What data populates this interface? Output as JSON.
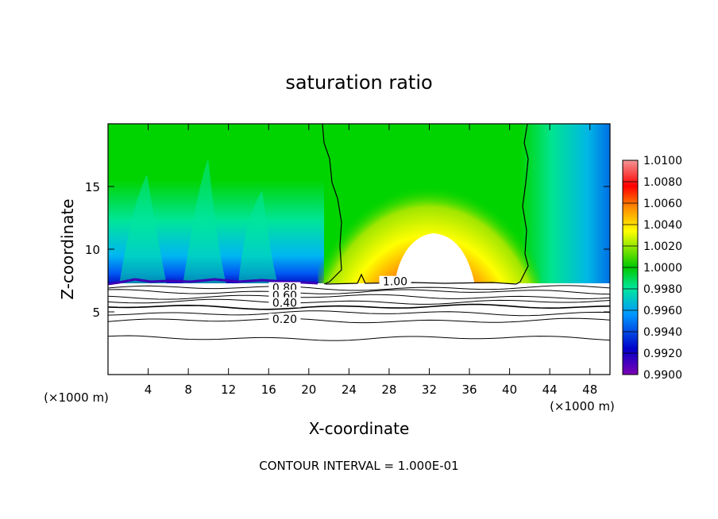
{
  "chart_data": {
    "type": "heatmap",
    "title": "saturation ratio",
    "xlabel": "X-coordinate",
    "ylabel": "Z-coordinate",
    "x_unit": "(×1000 m)",
    "x_unit_right": "(×1000 m)",
    "footer": "CONTOUR INTERVAL = 1.000E-01",
    "xlim": [
      0,
      50
    ],
    "ylim": [
      0,
      20
    ],
    "xticks": [
      "4",
      "8",
      "12",
      "16",
      "20",
      "24",
      "28",
      "32",
      "36",
      "40",
      "44",
      "48"
    ],
    "yticks": [
      "5",
      "10",
      "15"
    ],
    "colorbar_ticks": [
      "1.0100",
      "1.0080",
      "1.0060",
      "1.0040",
      "1.0020",
      "1.0000",
      "0.9980",
      "0.9960",
      "0.9940",
      "0.9920",
      "0.9900"
    ],
    "colorbar_range": [
      0.99,
      1.01
    ],
    "colorbar_colors": [
      "#f29696",
      "#ff0000",
      "#ff8c00",
      "#ffff00",
      "#00c800",
      "#00e6a0",
      "#0096ff",
      "#0000c8",
      "#7d00b4"
    ],
    "contour_labels": [
      {
        "text": "1.00",
        "x": 28.6,
        "z": 7.3
      },
      {
        "text": "0.80",
        "x": 17.6,
        "z": 6.8
      },
      {
        "text": "0.60",
        "x": 17.6,
        "z": 6.2
      },
      {
        "text": "0.40",
        "x": 17.6,
        "z": 5.6
      },
      {
        "text": "0.20",
        "x": 17.6,
        "z": 4.3
      }
    ],
    "contour_levels_below": [
      0.9,
      0.8,
      0.7,
      0.6,
      0.5,
      0.4,
      0.3,
      0.2,
      0.1
    ],
    "contour_heights_z": [
      6.9,
      6.6,
      6.2,
      5.8,
      5.4,
      4.9,
      4.3,
      2.9
    ],
    "base_of_colored_field_z": 7.4,
    "supersaturated_region": {
      "value_above": 1.01,
      "center_x": 32,
      "top_z": 11.2
    },
    "boundary_contour_x": [
      21.5,
      41
    ]
  }
}
